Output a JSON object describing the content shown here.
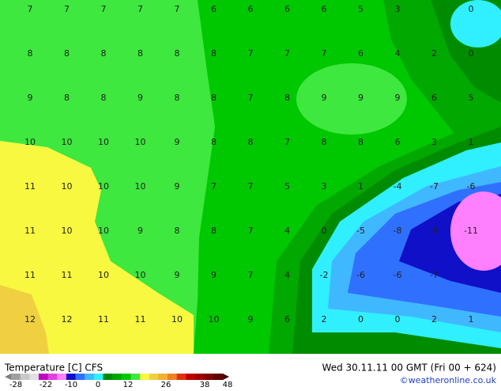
{
  "title": "Temperature [C] CFS",
  "valid_time": "Wed 30.11.11 00 GMT (Fri 00 + 624)",
  "credit": "©weatheronline.co.uk",
  "legend_labels": [
    "-28",
    "-22",
    "-10",
    "0",
    "12",
    "26",
    "38",
    "48"
  ],
  "grid_values": [
    [
      7,
      7,
      7,
      7,
      7,
      6,
      6,
      6,
      6,
      5,
      3,
      null,
      0
    ],
    [
      8,
      8,
      8,
      8,
      8,
      8,
      7,
      7,
      7,
      6,
      4,
      2,
      0
    ],
    [
      9,
      8,
      8,
      9,
      8,
      8,
      7,
      8,
      9,
      9,
      9,
      6,
      5
    ],
    [
      10,
      10,
      10,
      10,
      9,
      8,
      8,
      7,
      8,
      8,
      6,
      3,
      1
    ],
    [
      11,
      10,
      10,
      10,
      9,
      7,
      7,
      5,
      3,
      1,
      -4,
      -7,
      -6
    ],
    [
      11,
      10,
      10,
      9,
      8,
      8,
      7,
      4,
      0,
      -5,
      -8,
      -9,
      -11
    ],
    [
      11,
      11,
      10,
      10,
      9,
      9,
      7,
      4,
      -2,
      -6,
      -6,
      -7,
      null
    ],
    [
      12,
      12,
      11,
      11,
      10,
      10,
      9,
      6,
      2,
      0,
      0,
      2,
      1
    ]
  ]
}
